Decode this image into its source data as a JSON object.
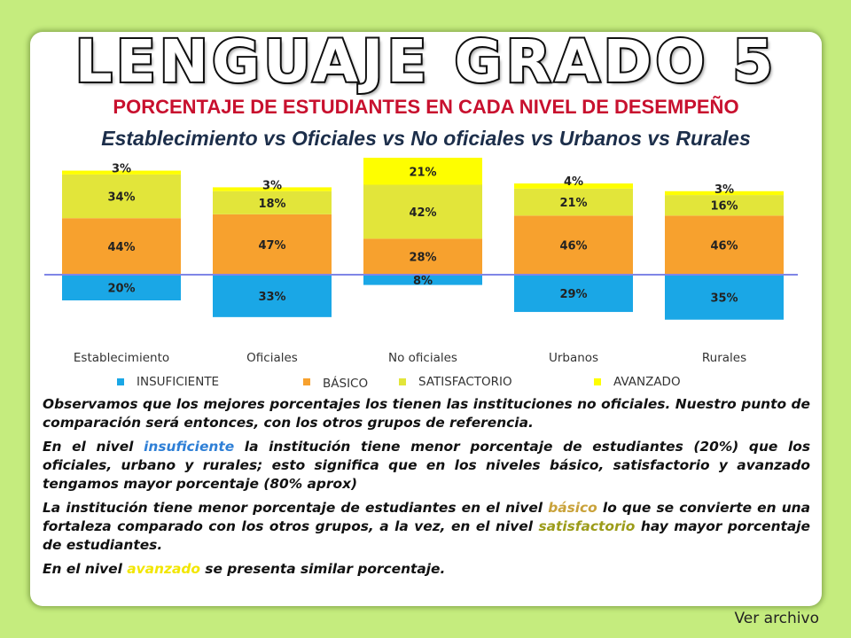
{
  "title": "LENGUAJE GRADO 5",
  "subtitle": "PORCENTAJE DE ESTUDIANTES EN CADA NIVEL DE DESEMPEÑO",
  "comparison": "Establecimiento vs Oficiales vs No oficiales vs Urbanos vs Rurales",
  "chart_data": {
    "type": "bar",
    "stacked": "diverging",
    "baseline_note": "INSUFICIENTE drawn below the baseline; BÁSICO, SATISFACTORIO, AVANZADO stacked above",
    "categories": [
      "Establecimiento",
      "Oficiales",
      "No oficiales",
      "Urbanos",
      "Rurales"
    ],
    "series": [
      {
        "name": "INSUFICIENTE",
        "color": "#1aa7e6",
        "values": [
          20,
          33,
          8,
          29,
          35
        ],
        "labels": [
          "20%",
          "33%",
          "8%",
          "29%",
          "35%"
        ]
      },
      {
        "name": "BÁSICO",
        "color": "#f7a12e",
        "values": [
          44,
          47,
          28,
          46,
          46
        ],
        "labels": [
          "44%",
          "47%",
          "28%",
          "46%",
          "46%"
        ]
      },
      {
        "name": "SATISFACTORIO",
        "color": "#e2e53a",
        "values": [
          34,
          18,
          42,
          21,
          16
        ],
        "labels": [
          "34%",
          "18%",
          "42%",
          "21%",
          "16%"
        ]
      },
      {
        "name": "AVANZADO",
        "color": "#fefe00",
        "values": [
          3,
          3,
          21,
          4,
          3
        ],
        "labels": [
          "3%",
          "3%",
          "21%",
          "4%",
          "3%"
        ]
      }
    ],
    "legend_position": "bottom",
    "grid": false,
    "baseline_color": "#7f86e6"
  },
  "paragraphs": {
    "p1": "Observamos que los mejores porcentajes los tienen las instituciones no oficiales. Nuestro punto de comparación será entonces, con los otros grupos de referencia.",
    "p2_a": "En el nivel ",
    "p2_hl": "insuficiente",
    "p2_b": " la institución tiene menor porcentaje de estudiantes (20%) que los oficiales, urbano y rurales; esto significa que en los niveles básico, satisfactorio y avanzado tengamos mayor porcentaje (80% aprox)",
    "p3_a": "La institución tiene menor porcentaje de estudiantes en el nivel ",
    "p3_hl1": "básico",
    "p3_b": " lo que se convierte en una fortaleza comparado con los otros grupos, a la vez, en el nivel ",
    "p3_hl2": "satisfactorio",
    "p3_c": " hay mayor porcentaje de estudiantes.",
    "p4_a": "En el nivel ",
    "p4_hl": "avanzado",
    "p4_b": " se presenta similar porcentaje."
  },
  "footer": {
    "link_label": "Ver archivo"
  }
}
